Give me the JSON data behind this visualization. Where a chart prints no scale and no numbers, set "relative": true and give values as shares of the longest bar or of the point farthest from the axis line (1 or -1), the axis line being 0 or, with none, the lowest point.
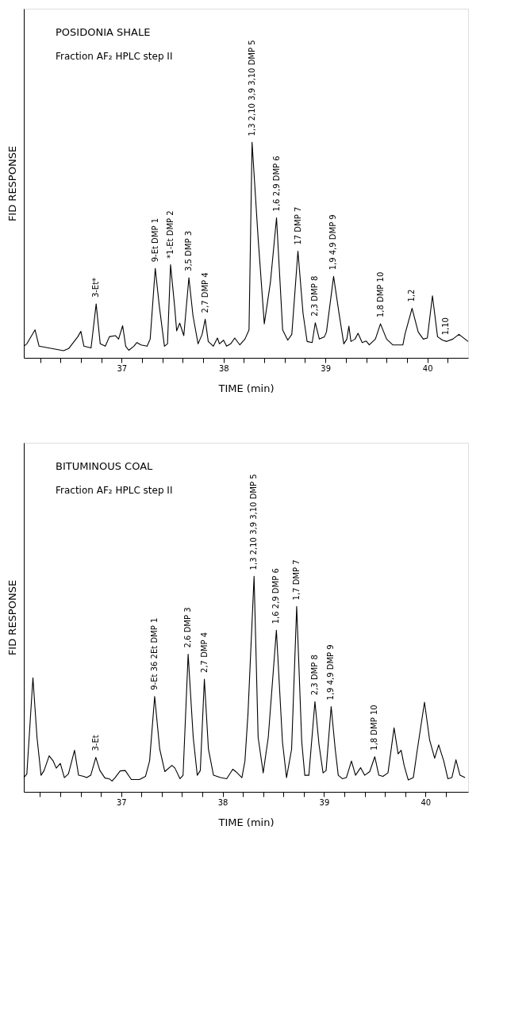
{
  "chart_data": [
    {
      "type": "line",
      "title": "POSIDONIA SHALE",
      "subtitle": "Fraction AF₂  HPLC step II",
      "xlabel": "TIME (min)",
      "ylabel": "FID RESPONSE",
      "relative": true,
      "grid": false,
      "marker": "none",
      "line_style": "solid",
      "xlim": [
        36.04,
        40.4
      ],
      "xticks": [
        {
          "value": 36.2,
          "label": null
        },
        {
          "value": 36.4,
          "label": null
        },
        {
          "value": 36.6,
          "label": null
        },
        {
          "value": 36.8,
          "label": null
        },
        37,
        {
          "value": 37.2,
          "label": null
        },
        {
          "value": 37.4,
          "label": null
        },
        {
          "value": 37.6,
          "label": null
        },
        {
          "value": 37.8,
          "label": null
        },
        38,
        {
          "value": 38.2,
          "label": null
        },
        {
          "value": 38.4,
          "label": null
        },
        {
          "value": 38.6,
          "label": null
        },
        {
          "value": 38.8,
          "label": null
        },
        39,
        {
          "value": 39.2,
          "label": null
        },
        {
          "value": 39.4,
          "label": null
        },
        {
          "value": 39.6,
          "label": null
        },
        {
          "value": 39.8,
          "label": null
        },
        40,
        {
          "value": 40.2,
          "label": null
        }
      ],
      "series": [
        {
          "color": "#000000",
          "x": [
            36.04,
            36.07,
            36.15,
            36.19,
            36.43,
            36.48,
            36.57,
            36.6,
            36.63,
            36.7,
            36.75,
            36.79,
            36.84,
            36.88,
            36.94,
            36.97,
            37.01,
            37.04,
            37.07,
            37.12,
            37.15,
            37.19,
            37.25,
            37.28,
            37.33,
            37.37,
            37.42,
            37.45,
            37.48,
            37.52,
            37.54,
            37.57,
            37.61,
            37.66,
            37.7,
            37.75,
            37.79,
            37.82,
            37.85,
            37.9,
            37.94,
            37.96,
            38.0,
            38.03,
            38.07,
            38.11,
            38.16,
            38.21,
            38.25,
            38.28,
            38.34,
            38.4,
            38.46,
            38.52,
            38.58,
            38.63,
            38.67,
            38.73,
            38.78,
            38.82,
            38.87,
            38.9,
            38.94,
            38.99,
            39.01,
            39.08,
            39.13,
            39.18,
            39.21,
            39.23,
            39.25,
            39.29,
            39.32,
            39.36,
            39.4,
            39.43,
            39.49,
            39.54,
            39.6,
            39.66,
            39.76,
            39.78,
            39.85,
            39.91,
            39.96,
            40.0,
            40.05,
            40.1,
            40.15,
            40.19,
            40.25,
            40.31,
            40.4
          ],
          "values": [
            0.054,
            0.065,
            0.13,
            0.054,
            0.033,
            0.043,
            0.098,
            0.123,
            0.054,
            0.046,
            0.25,
            0.065,
            0.054,
            0.098,
            0.103,
            0.087,
            0.149,
            0.054,
            0.035,
            0.054,
            0.071,
            0.06,
            0.054,
            0.087,
            0.415,
            0.239,
            0.054,
            0.065,
            0.432,
            0.239,
            0.125,
            0.161,
            0.103,
            0.372,
            0.196,
            0.065,
            0.109,
            0.179,
            0.076,
            0.054,
            0.092,
            0.065,
            0.082,
            0.054,
            0.065,
            0.092,
            0.06,
            0.087,
            0.13,
            1.0,
            0.55,
            0.158,
            0.35,
            0.65,
            0.13,
            0.082,
            0.109,
            0.495,
            0.207,
            0.076,
            0.071,
            0.163,
            0.087,
            0.098,
            0.12,
            0.378,
            0.217,
            0.065,
            0.087,
            0.147,
            0.076,
            0.087,
            0.114,
            0.071,
            0.078,
            0.06,
            0.087,
            0.158,
            0.087,
            0.06,
            0.06,
            0.109,
            0.23,
            0.12,
            0.087,
            0.092,
            0.288,
            0.098,
            0.082,
            0.076,
            0.087,
            0.109,
            0.076
          ]
        }
      ],
      "annotations": [
        {
          "text": "3-Et*",
          "x": 36.75,
          "y": 0.25
        },
        {
          "text": "9-Et  DMP 1",
          "x": 37.33,
          "y": 0.415
        },
        {
          "text": "*1-Et  DMP 2",
          "x": 37.48,
          "y": 0.432
        },
        {
          "text": "3,5  DMP 3",
          "x": 37.66,
          "y": 0.372
        },
        {
          "text": "2,7  DMP 4",
          "x": 37.82,
          "y": 0.179
        },
        {
          "text": "1,3  2,10  3,9  3,10  DMP 5",
          "x": 38.28,
          "y": 1.0
        },
        {
          "text": "1,6  2,9  DMP 6",
          "x": 38.52,
          "y": 0.65
        },
        {
          "text": "17  DMP 7",
          "x": 38.73,
          "y": 0.495
        },
        {
          "text": "2,3  DMP 8",
          "x": 38.9,
          "y": 0.163
        },
        {
          "text": "1,9  4,9  DMP 9",
          "x": 39.08,
          "y": 0.378
        },
        {
          "text": "1,8  DMP 10",
          "x": 39.54,
          "y": 0.158
        },
        {
          "text": "1,2",
          "x": 39.85,
          "y": 0.23
        },
        {
          "text": "1,10",
          "x": 40.18,
          "y": 0.076
        }
      ]
    },
    {
      "type": "line",
      "title": "BITUMINOUS COAL",
      "subtitle": "Fraction AF₂ HPLC step II",
      "xlabel": "TIME (min)",
      "ylabel": "FID RESPONSE",
      "relative": true,
      "grid": false,
      "marker": "none",
      "line_style": "solid",
      "xlim": [
        36.04,
        40.42
      ],
      "xticks": [
        {
          "value": 36.2,
          "label": null
        },
        {
          "value": 36.4,
          "label": null
        },
        {
          "value": 36.6,
          "label": null
        },
        {
          "value": 36.8,
          "label": null
        },
        37,
        {
          "value": 37.2,
          "label": null
        },
        {
          "value": 37.4,
          "label": null
        },
        {
          "value": 37.6,
          "label": null
        },
        {
          "value": 37.8,
          "label": null
        },
        38,
        {
          "value": 38.2,
          "label": null
        },
        {
          "value": 38.4,
          "label": null
        },
        {
          "value": 38.6,
          "label": null
        },
        {
          "value": 38.8,
          "label": null
        },
        39,
        {
          "value": 39.2,
          "label": null
        },
        {
          "value": 39.4,
          "label": null
        },
        {
          "value": 39.6,
          "label": null
        },
        {
          "value": 39.8,
          "label": null
        },
        40,
        {
          "value": 40.2,
          "label": null
        }
      ],
      "series": [
        {
          "color": "#000000",
          "x": [
            36.04,
            36.07,
            36.13,
            36.17,
            36.21,
            36.24,
            36.29,
            36.33,
            36.36,
            36.4,
            36.44,
            36.48,
            36.54,
            36.58,
            36.63,
            36.66,
            36.7,
            36.75,
            36.79,
            36.84,
            36.88,
            36.91,
            36.94,
            36.99,
            37.04,
            37.1,
            37.18,
            37.24,
            37.28,
            37.33,
            37.38,
            37.43,
            37.5,
            37.53,
            37.58,
            37.61,
            37.66,
            37.71,
            37.75,
            37.78,
            37.82,
            37.86,
            37.91,
            37.98,
            38.04,
            38.1,
            38.13,
            38.19,
            38.22,
            38.25,
            38.31,
            38.35,
            38.4,
            38.45,
            38.53,
            38.59,
            38.63,
            38.68,
            38.73,
            38.78,
            38.81,
            38.85,
            38.91,
            38.95,
            38.99,
            39.02,
            39.07,
            39.11,
            39.14,
            39.18,
            39.22,
            39.27,
            39.31,
            39.36,
            39.4,
            39.45,
            39.5,
            39.54,
            39.58,
            39.63,
            39.69,
            39.73,
            39.76,
            39.79,
            39.83,
            39.88,
            39.92,
            39.99,
            40.04,
            40.09,
            40.13,
            40.18,
            40.22,
            40.26,
            40.3,
            40.34,
            40.39
          ],
          "values": [
            0.066,
            0.083,
            0.529,
            0.253,
            0.077,
            0.099,
            0.167,
            0.143,
            0.11,
            0.132,
            0.066,
            0.083,
            0.193,
            0.077,
            0.072,
            0.066,
            0.077,
            0.16,
            0.099,
            0.064,
            0.061,
            0.05,
            0.066,
            0.097,
            0.099,
            0.057,
            0.057,
            0.072,
            0.143,
            0.443,
            0.198,
            0.094,
            0.123,
            0.11,
            0.061,
            0.077,
            0.639,
            0.253,
            0.077,
            0.099,
            0.523,
            0.198,
            0.077,
            0.066,
            0.061,
            0.105,
            0.094,
            0.066,
            0.143,
            0.363,
            1.0,
            0.253,
            0.088,
            0.253,
            0.75,
            0.231,
            0.066,
            0.198,
            0.86,
            0.231,
            0.077,
            0.077,
            0.419,
            0.22,
            0.088,
            0.099,
            0.396,
            0.198,
            0.077,
            0.061,
            0.066,
            0.143,
            0.077,
            0.112,
            0.077,
            0.094,
            0.163,
            0.077,
            0.072,
            0.088,
            0.297,
            0.176,
            0.193,
            0.121,
            0.055,
            0.066,
            0.198,
            0.416,
            0.242,
            0.156,
            0.218,
            0.143,
            0.061,
            0.066,
            0.149,
            0.077,
            0.066
          ]
        }
      ],
      "annotations": [
        {
          "text": "3-Et",
          "x": 36.75,
          "y": 0.16
        },
        {
          "text": "9-Et  36  2Et  DMP 1",
          "x": 37.33,
          "y": 0.443
        },
        {
          "text": "2,6  DMP 3",
          "x": 37.66,
          "y": 0.639
        },
        {
          "text": "2,7  DMP 4",
          "x": 37.82,
          "y": 0.523
        },
        {
          "text": "1,3  2,10  3,9  3,10  DMP 5",
          "x": 38.31,
          "y": 1.0
        },
        {
          "text": "1,6  2,9  DMP 6",
          "x": 38.53,
          "y": 0.75
        },
        {
          "text": "1,7  DMP 7",
          "x": 38.73,
          "y": 0.86
        },
        {
          "text": "2,3  DMP 8",
          "x": 38.91,
          "y": 0.419
        },
        {
          "text": "1,9  4,9  DMP 9",
          "x": 39.07,
          "y": 0.396
        },
        {
          "text": "1,8  DMP 10",
          "x": 39.5,
          "y": 0.163
        }
      ]
    }
  ]
}
